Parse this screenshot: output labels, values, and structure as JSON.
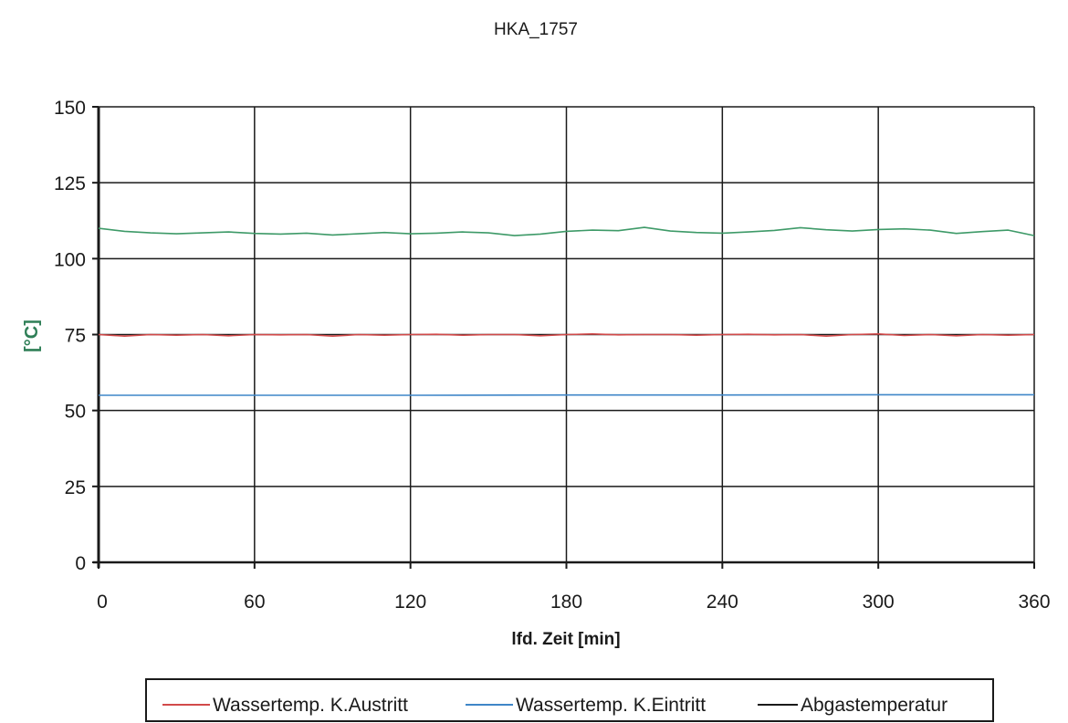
{
  "chart_data": {
    "type": "line",
    "title": "HKA_1757",
    "xlabel": "lfd. Zeit [min]",
    "ylabel": "[°C]",
    "xlim": [
      0,
      360
    ],
    "ylim": [
      0,
      150
    ],
    "xticks": [
      0,
      60,
      120,
      180,
      240,
      300,
      360
    ],
    "yticks": [
      0,
      25,
      50,
      75,
      100,
      125,
      150
    ],
    "grid": true,
    "legend_position": "bottom",
    "series": [
      {
        "name": "Wassertemp. K.Austritt",
        "color": "#d24a4a",
        "x": [
          0,
          10,
          20,
          30,
          40,
          50,
          60,
          70,
          80,
          90,
          100,
          110,
          120,
          130,
          140,
          150,
          160,
          170,
          180,
          190,
          200,
          210,
          220,
          230,
          240,
          250,
          260,
          270,
          280,
          290,
          300,
          310,
          320,
          330,
          340,
          350,
          360
        ],
        "y": [
          75,
          74.5,
          75,
          74.8,
          75,
          74.6,
          75,
          74.9,
          75,
          74.5,
          75,
          74.8,
          75,
          75.1,
          74.8,
          75,
          75,
          74.6,
          75,
          75.2,
          74.9,
          75,
          75,
          74.8,
          75,
          75.1,
          74.9,
          75,
          74.5,
          75,
          75.2,
          74.7,
          75,
          74.6,
          75,
          74.8,
          75
        ]
      },
      {
        "name": "Wassertemp. K.Eintritt",
        "color": "#3f86c8",
        "x": [
          0,
          60,
          120,
          180,
          240,
          300,
          360
        ],
        "y": [
          55,
          55,
          55,
          55.1,
          55.1,
          55.2,
          55.2
        ]
      },
      {
        "name": "Abgastemperatur",
        "color": "#3e9a68",
        "x": [
          0,
          10,
          20,
          30,
          40,
          50,
          60,
          70,
          80,
          90,
          100,
          110,
          120,
          130,
          140,
          150,
          160,
          170,
          180,
          190,
          200,
          210,
          220,
          230,
          240,
          250,
          260,
          270,
          280,
          290,
          300,
          310,
          320,
          330,
          340,
          350,
          360
        ],
        "y": [
          110,
          109,
          108.5,
          108.2,
          108.5,
          108.8,
          108.3,
          108.1,
          108.4,
          107.8,
          108.2,
          108.6,
          108.2,
          108.4,
          108.8,
          108.5,
          107.6,
          108.1,
          109,
          109.4,
          109.2,
          110.3,
          109.1,
          108.6,
          108.4,
          108.8,
          109.3,
          110.2,
          109.5,
          109.1,
          109.6,
          109.8,
          109.4,
          108.3,
          108.9,
          109.4,
          107.6
        ]
      }
    ],
    "legend_series": [
      {
        "label": "Wassertemp. K.Austritt",
        "color": "#d24a4a"
      },
      {
        "label": "Wassertemp. K.Eintritt",
        "color": "#3f86c8"
      },
      {
        "label": "Abgastemperatur",
        "color": "#1a1a1a"
      }
    ]
  }
}
